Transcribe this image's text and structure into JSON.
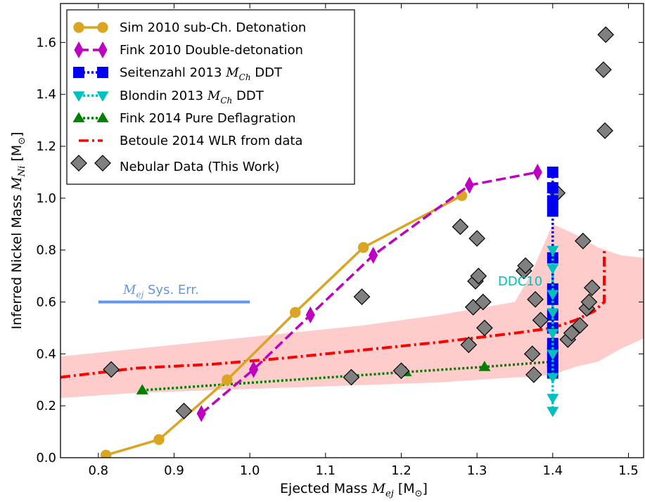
{
  "chart_data": {
    "type": "line",
    "xlabel": "Ejected Mass",
    "xlabel_math": "M",
    "xlabel_sub": "ej",
    "xlabel_unit": "[M",
    "xlabel_unit_sub": "⊙",
    "xlabel_unit_close": "]",
    "ylabel": "Inferred Nickel Mass",
    "ylabel_math": "M",
    "ylabel_sub": "Ni",
    "ylabel_unit": "[M",
    "ylabel_unit_sub": "⊙",
    "ylabel_unit_close": "]",
    "xlim": [
      0.75,
      1.52
    ],
    "ylim": [
      0.0,
      1.75
    ],
    "xticks": [
      0.8,
      0.9,
      1.0,
      1.1,
      1.2,
      1.3,
      1.4,
      1.5
    ],
    "xtick_labels": [
      "0.8",
      "0.9",
      "1.0",
      "1.1",
      "1.2",
      "1.3",
      "1.4",
      "1.5"
    ],
    "yticks": [
      0.0,
      0.2,
      0.4,
      0.6,
      0.8,
      1.0,
      1.2,
      1.4,
      1.6
    ],
    "ytick_labels": [
      "0.0",
      "0.2",
      "0.4",
      "0.6",
      "0.8",
      "1.0",
      "1.2",
      "1.4",
      "1.6"
    ],
    "grid": false,
    "legend_position": "top-left",
    "series": [
      {
        "id": "sim2010",
        "name": "Sim 2010 sub-Ch. Detonation",
        "color": "#daa520",
        "style": "solid",
        "marker": "circle",
        "points": [
          [
            0.81,
            0.01
          ],
          [
            0.88,
            0.07
          ],
          [
            0.97,
            0.3
          ],
          [
            1.06,
            0.56
          ],
          [
            1.15,
            0.81
          ],
          [
            1.28,
            1.01
          ]
        ]
      },
      {
        "id": "fink2010",
        "name": "Fink 2010 Double-detonation",
        "color": "#c000c0",
        "style": "dashed",
        "marker": "thin-diamond",
        "points": [
          [
            0.936,
            0.17
          ],
          [
            1.005,
            0.34
          ],
          [
            1.08,
            0.55
          ],
          [
            1.163,
            0.78
          ],
          [
            1.29,
            1.05
          ],
          [
            1.38,
            1.1
          ]
        ]
      },
      {
        "id": "seitenzahl2013",
        "name": "Seitenzahl 2013",
        "name_math": "M",
        "name_sub": "Ch",
        "name_suffix": "DDT",
        "color": "#0000ee",
        "style": "dotted",
        "marker": "square",
        "points": [
          [
            1.4,
            1.1
          ],
          [
            1.4,
            1.04
          ],
          [
            1.4,
            0.99
          ],
          [
            1.4,
            0.95
          ],
          [
            1.4,
            0.77
          ],
          [
            1.4,
            0.65
          ],
          [
            1.4,
            0.61
          ],
          [
            1.4,
            0.55
          ],
          [
            1.4,
            0.5
          ],
          [
            1.4,
            0.44
          ],
          [
            1.4,
            0.41
          ],
          [
            1.4,
            0.37
          ],
          [
            1.4,
            0.33
          ]
        ]
      },
      {
        "id": "blondin2013",
        "name": "Blondin 2013",
        "name_math": "M",
        "name_sub": "Ch",
        "name_suffix": "DDT",
        "color": "#00bfbf",
        "style": "dotted",
        "marker": "triangle-down",
        "points": [
          [
            1.4,
            0.8
          ],
          [
            1.4,
            0.73
          ],
          [
            1.4,
            0.63
          ],
          [
            1.4,
            0.56
          ],
          [
            1.4,
            0.48
          ],
          [
            1.4,
            0.4
          ],
          [
            1.4,
            0.31
          ],
          [
            1.4,
            0.23
          ],
          [
            1.4,
            0.18
          ]
        ]
      },
      {
        "id": "fink2014",
        "name": "Fink 2014 Pure Deflagration",
        "color": "#008000",
        "style": "dotted",
        "marker": "triangle-up",
        "points": [
          [
            0.858,
            0.26
          ],
          [
            1.206,
            0.33
          ],
          [
            1.31,
            0.35
          ],
          [
            1.4,
            0.37
          ],
          [
            1.4,
            0.32
          ]
        ]
      },
      {
        "id": "betoule2014",
        "name": "Betoule 2014 WLR from data",
        "color": "#ff0000",
        "style": "dashdot",
        "marker": "none",
        "points": [
          [
            0.75,
            0.31
          ],
          [
            0.85,
            0.345
          ],
          [
            0.95,
            0.36
          ],
          [
            1.05,
            0.385
          ],
          [
            1.15,
            0.415
          ],
          [
            1.25,
            0.445
          ],
          [
            1.35,
            0.48
          ],
          [
            1.4,
            0.5
          ],
          [
            1.43,
            0.53
          ],
          [
            1.455,
            0.565
          ],
          [
            1.468,
            0.6
          ],
          [
            1.468,
            0.81
          ]
        ],
        "band": {
          "color": "#ffcccc",
          "x": [
            0.75,
            0.85,
            0.95,
            1.05,
            1.15,
            1.25,
            1.35,
            1.37,
            1.4,
            1.43,
            1.46,
            1.49,
            1.52
          ],
          "lower": [
            0.23,
            0.25,
            0.26,
            0.27,
            0.28,
            0.29,
            0.31,
            0.31,
            0.32,
            0.35,
            0.37,
            0.42,
            0.46
          ],
          "upper": [
            0.39,
            0.42,
            0.45,
            0.48,
            0.51,
            0.55,
            0.6,
            0.7,
            0.9,
            0.86,
            0.81,
            0.78,
            0.77
          ]
        }
      },
      {
        "id": "nebular",
        "name": "Nebular Data (This Work)",
        "color": "#808080",
        "style": "none",
        "marker": "diamond",
        "points": [
          [
            0.817,
            0.34
          ],
          [
            0.913,
            0.18
          ],
          [
            1.134,
            0.31
          ],
          [
            1.148,
            0.62
          ],
          [
            1.2,
            0.335
          ],
          [
            1.278,
            0.89
          ],
          [
            1.289,
            0.435
          ],
          [
            1.295,
            0.58
          ],
          [
            1.298,
            0.68
          ],
          [
            1.3,
            0.845
          ],
          [
            1.302,
            0.7
          ],
          [
            1.308,
            0.6
          ],
          [
            1.31,
            0.5
          ],
          [
            1.362,
            0.72
          ],
          [
            1.364,
            0.74
          ],
          [
            1.373,
            0.4
          ],
          [
            1.375,
            0.32
          ],
          [
            1.377,
            0.61
          ],
          [
            1.384,
            0.53
          ],
          [
            1.406,
            1.02
          ],
          [
            1.42,
            0.455
          ],
          [
            1.425,
            0.48
          ],
          [
            1.436,
            0.51
          ],
          [
            1.44,
            0.835
          ],
          [
            1.445,
            0.575
          ],
          [
            1.448,
            0.6
          ],
          [
            1.452,
            0.655
          ],
          [
            1.467,
            1.495
          ],
          [
            1.469,
            1.26
          ],
          [
            1.47,
            1.63
          ]
        ]
      }
    ],
    "annotations": [
      {
        "id": "syserr",
        "text": "Sys. Err.",
        "math": "M",
        "sub": "ej",
        "color": "#6495ed",
        "x": 0.8,
        "y": 0.6,
        "x2": 1.0
      },
      {
        "id": "ddc10",
        "text": "DDC10",
        "color": "#00bfbf",
        "x": 1.32,
        "y": 0.66
      }
    ]
  }
}
